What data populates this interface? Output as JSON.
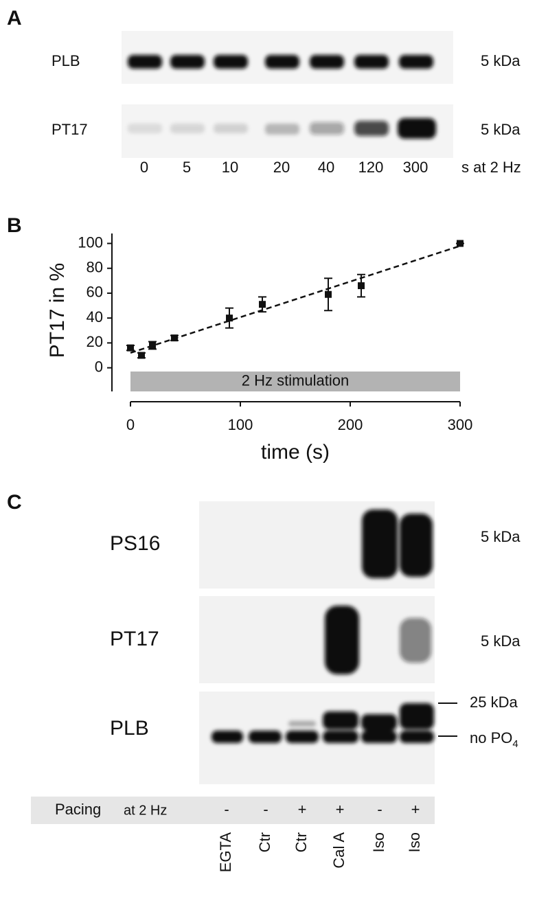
{
  "panel_a": {
    "letter": "A",
    "rows": [
      "PLB",
      "PT17"
    ],
    "kda": [
      "5 kDa",
      "5 kDa"
    ],
    "lanes": [
      "0",
      "5",
      "10",
      "20",
      "40",
      "120",
      "300"
    ],
    "lane_unit": "s at 2 Hz"
  },
  "chart_data": {
    "type": "scatter",
    "letter": "B",
    "x_label": "time (s)",
    "y_label": "PT17 in %",
    "x": [
      0,
      10,
      20,
      40,
      90,
      120,
      180,
      210,
      300
    ],
    "series": [
      {
        "name": "PT17",
        "color": "#111111",
        "values": [
          16,
          10,
          18,
          24,
          40,
          51,
          59,
          66,
          100
        ],
        "errors": [
          2,
          2,
          3,
          2,
          8,
          6,
          13,
          9,
          0
        ]
      }
    ],
    "fit": {
      "x": [
        0,
        300
      ],
      "values": [
        12,
        98
      ]
    },
    "band": {
      "label": "2 Hz stimulation",
      "x": [
        0,
        300
      ],
      "values": [
        -3,
        -19
      ]
    },
    "xlim": [
      0,
      300
    ],
    "ylim": [
      -19,
      108
    ],
    "xticks": [
      0,
      100,
      200,
      300
    ],
    "yticks": [
      0,
      20,
      40,
      60,
      80,
      100
    ]
  },
  "panel_c": {
    "letter": "C",
    "rows": [
      "PS16",
      "PT17",
      "PLB"
    ],
    "kda": [
      "5 kDa",
      "5 kDa",
      "25 kDa"
    ],
    "no_po4": {
      "text": "no PO",
      "subscript": "4"
    },
    "pacing": {
      "label": "Pacing",
      "sub": "at 2 Hz",
      "signs": [
        "-",
        "-",
        "+",
        "+",
        "-",
        "+"
      ]
    },
    "lanes": [
      "EGTA",
      "Ctr",
      "Ctr",
      "Cal A",
      "Iso",
      "Iso"
    ]
  }
}
